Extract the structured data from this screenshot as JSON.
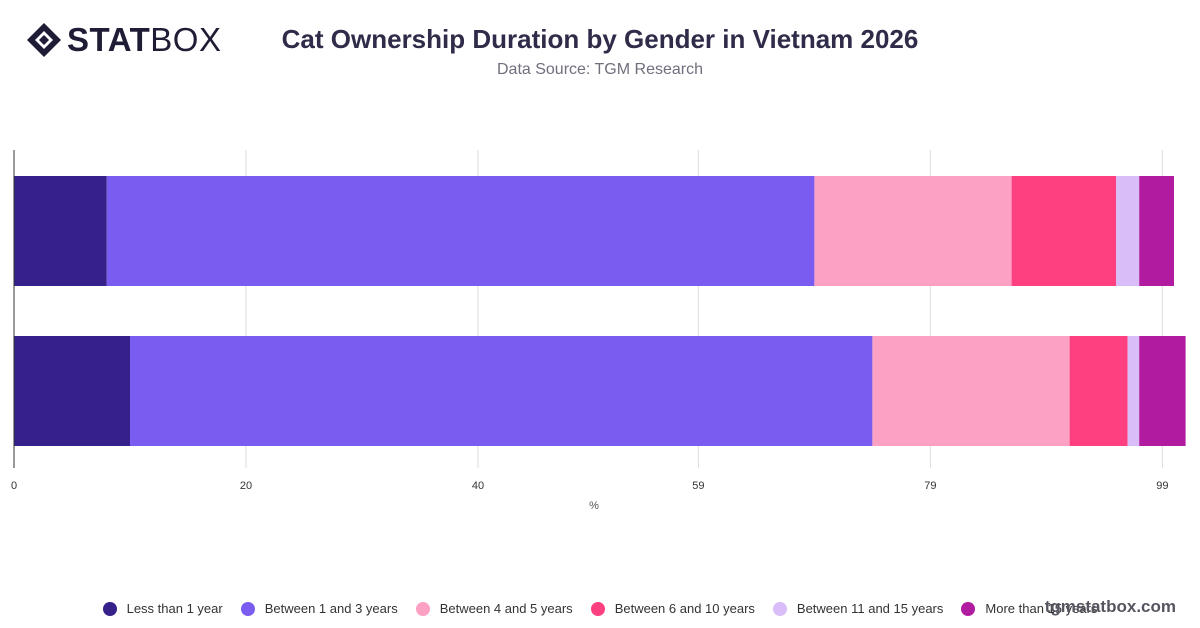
{
  "brand": {
    "logo_bold": "STAT",
    "logo_thin": "BOX"
  },
  "header": {
    "title": "Cat Ownership Duration by Gender in Vietnam 2026",
    "subtitle": "Data Source: TGM Research"
  },
  "watermark": "tgmstatbox.com",
  "chart_data": {
    "type": "bar",
    "orientation": "horizontal",
    "stacked": true,
    "title": "Cat Ownership Duration by Gender in Vietnam 2026",
    "subtitle": "Data Source: TGM Research",
    "xlabel": "%",
    "ylabel": "",
    "xlim": [
      0,
      100
    ],
    "x_ticks": [
      0,
      20,
      40,
      59,
      79,
      99
    ],
    "categories": [
      "",
      ""
    ],
    "grid": true,
    "legend_position": "bottom",
    "series": [
      {
        "name": "Less than 1 year",
        "color": "#36218a",
        "values": [
          8,
          10
        ]
      },
      {
        "name": "Between 1 and 3 years",
        "color": "#7b5cf0",
        "values": [
          61,
          64
        ]
      },
      {
        "name": "Between 4 and 5 years",
        "color": "#fca1c3",
        "values": [
          17,
          17
        ]
      },
      {
        "name": "Between 6 and 10 years",
        "color": "#ff4080",
        "values": [
          9,
          5
        ]
      },
      {
        "name": "Between 11 and 15 years",
        "color": "#d9bdf8",
        "values": [
          2,
          1
        ]
      },
      {
        "name": "More than 15 years",
        "color": "#b01ba0",
        "values": [
          3,
          4
        ]
      }
    ]
  }
}
